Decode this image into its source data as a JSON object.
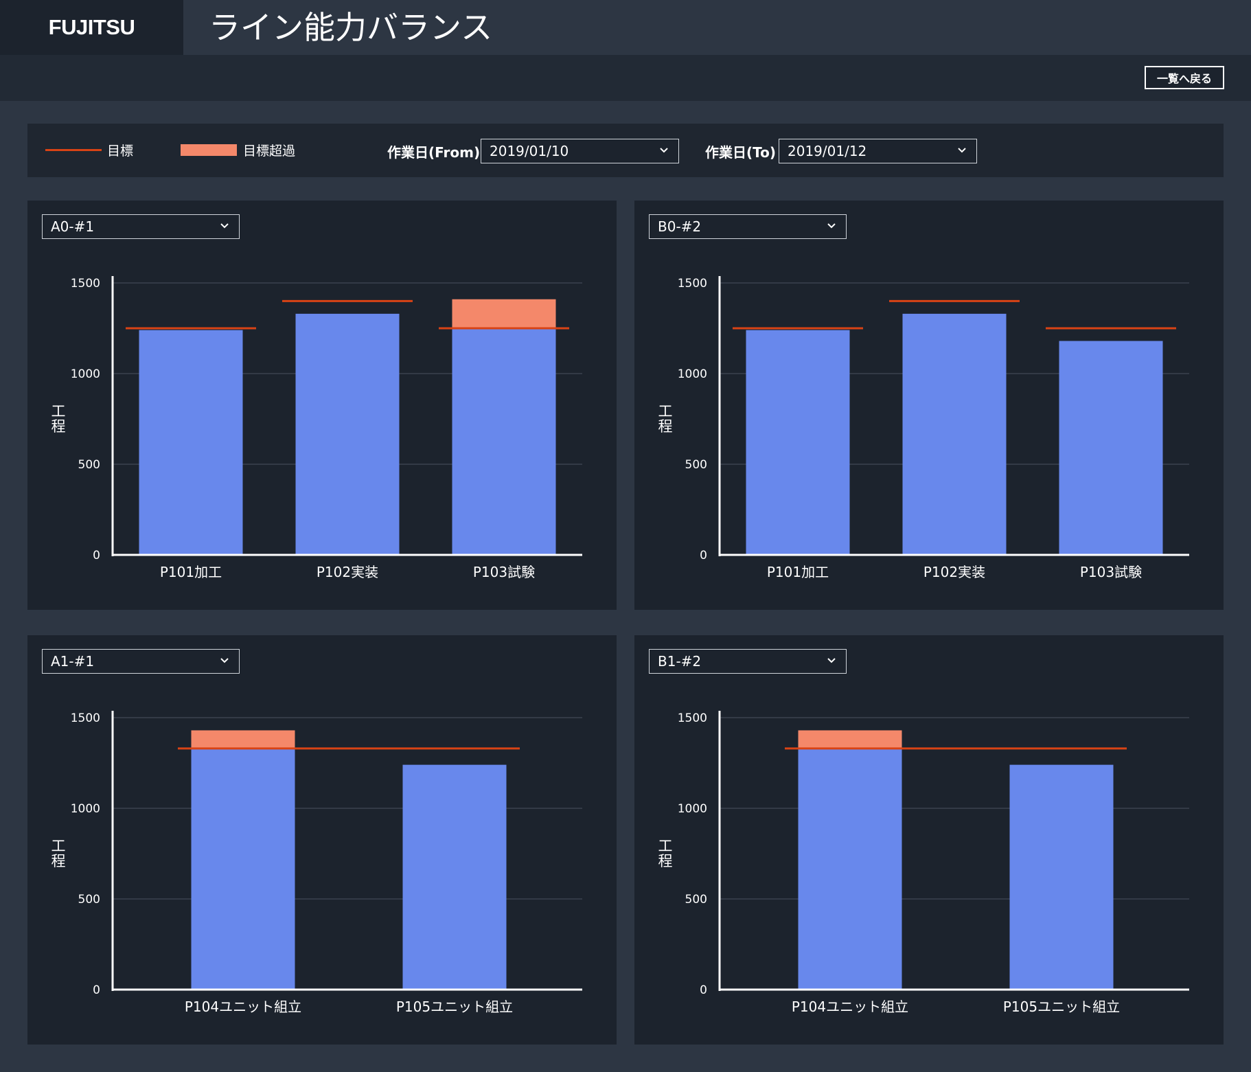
{
  "header": {
    "logo": "FUJITSU",
    "title": "ライン能力バランス"
  },
  "toolbar": {
    "back_label": "一覧へ戻る"
  },
  "legend": {
    "target_label": "目標",
    "over_label": "目標超過"
  },
  "filters": {
    "from_label": "作業日(From)",
    "from_value": "2019/01/10",
    "to_label": "作業日(To)",
    "to_value": "2019/01/12"
  },
  "colors": {
    "bar": "#6888ec",
    "over": "#f4886a",
    "target": "#d84315"
  },
  "charts": [
    {
      "selector": "A0-#1"
    },
    {
      "selector": "B0-#2"
    },
    {
      "selector": "A1-#1"
    },
    {
      "selector": "B1-#2"
    }
  ],
  "chart_data": [
    {
      "type": "bar",
      "selector": "A0-#1",
      "ylabel": "工程",
      "ylim": [
        0,
        1500
      ],
      "yticks": [
        "0",
        "500",
        "1000",
        "1500"
      ],
      "categories": [
        "P101加工",
        "P102実装",
        "P103試験"
      ],
      "values": [
        1240,
        1330,
        1410
      ],
      "targets": [
        1250,
        1400,
        1250
      ]
    },
    {
      "type": "bar",
      "selector": "B0-#2",
      "ylabel": "工程",
      "ylim": [
        0,
        1500
      ],
      "yticks": [
        "0",
        "500",
        "1000",
        "1500"
      ],
      "categories": [
        "P101加工",
        "P102実装",
        "P103試験"
      ],
      "values": [
        1240,
        1330,
        1180
      ],
      "targets": [
        1250,
        1400,
        1250
      ]
    },
    {
      "type": "bar",
      "selector": "A1-#1",
      "ylabel": "工程",
      "ylim": [
        0,
        1500
      ],
      "yticks": [
        "0",
        "500",
        "1000",
        "1500"
      ],
      "categories": [
        "P104ユニット組立",
        "P105ユニット組立"
      ],
      "values": [
        1430,
        1240
      ],
      "targets": [
        1330,
        1330
      ]
    },
    {
      "type": "bar",
      "selector": "B1-#2",
      "ylabel": "工程",
      "ylim": [
        0,
        1500
      ],
      "yticks": [
        "0",
        "500",
        "1000",
        "1500"
      ],
      "categories": [
        "P104ユニット組立",
        "P105ユニット組立"
      ],
      "values": [
        1430,
        1240
      ],
      "targets": [
        1330,
        1330
      ]
    }
  ]
}
